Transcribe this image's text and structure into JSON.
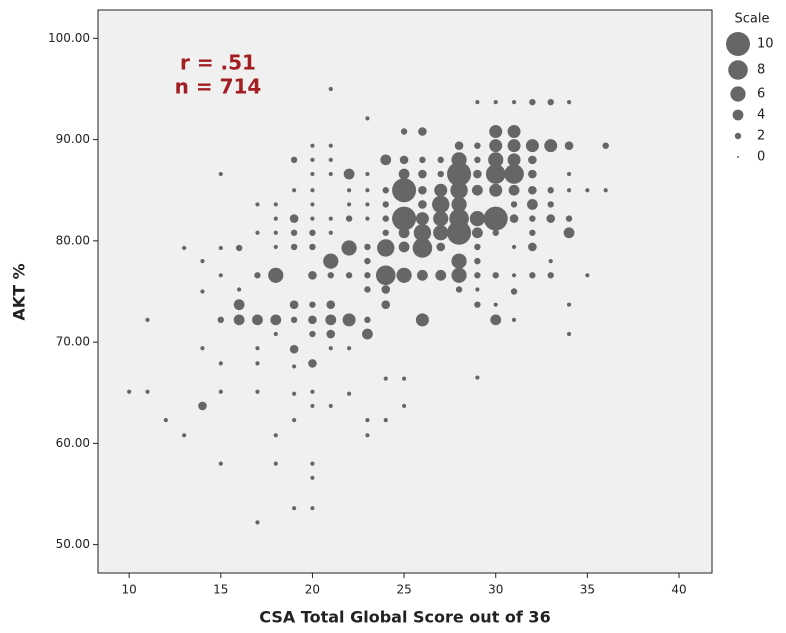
{
  "chart_data": {
    "type": "bubble",
    "xlabel": "CSA Total Global Score out of 36",
    "ylabel": "AKT %",
    "annotations": [
      "r = .51",
      "n = 714"
    ],
    "annotation_color": "#a31e22",
    "color": "#666666",
    "legend_title": "Scale",
    "legend_sizes": [
      10,
      8,
      6,
      4,
      2,
      0
    ],
    "xlim": [
      8.3,
      41.8
    ],
    "xticks": [
      10,
      15,
      20,
      25,
      30,
      35,
      40
    ],
    "ylim": [
      47.2,
      102.8
    ],
    "yticks": [
      {
        "value": 50,
        "label": "50.00"
      },
      {
        "value": 60,
        "label": "60.00"
      },
      {
        "value": 70,
        "label": "70.00"
      },
      {
        "value": 80,
        "label": "80.00"
      },
      {
        "value": 90,
        "label": "90.00"
      },
      {
        "value": 100,
        "label": "100.00"
      }
    ],
    "x": [
      10,
      11,
      11,
      12,
      13,
      13,
      14,
      14,
      14,
      14,
      15,
      15,
      15,
      15,
      15,
      15,
      15,
      16,
      16,
      16,
      16,
      17,
      17,
      17,
      17,
      17,
      17,
      17,
      17,
      18,
      18,
      18,
      18,
      18,
      18,
      18,
      18,
      18,
      19,
      19,
      19,
      19,
      19,
      19,
      19,
      19,
      19,
      19,
      19,
      19,
      20,
      20,
      20,
      20,
      20,
      20,
      20,
      20,
      20,
      20,
      20,
      20,
      20,
      20,
      20,
      20,
      20,
      20,
      21,
      21,
      21,
      21,
      21,
      21,
      21,
      21,
      21,
      21,
      21,
      21,
      21,
      22,
      22,
      22,
      22,
      22,
      22,
      22,
      22,
      22,
      23,
      23,
      23,
      23,
      23,
      23,
      23,
      23,
      23,
      23,
      23,
      23,
      23,
      24,
      24,
      24,
      24,
      24,
      24,
      24,
      24,
      24,
      24,
      24,
      25,
      25,
      25,
      25,
      25,
      25,
      25,
      25,
      25,
      25,
      26,
      26,
      26,
      26,
      26,
      26,
      26,
      26,
      26,
      26,
      27,
      27,
      27,
      27,
      27,
      27,
      27,
      27,
      28,
      28,
      28,
      28,
      28,
      28,
      28,
      28,
      28,
      28,
      29,
      29,
      29,
      29,
      29,
      29,
      29,
      29,
      29,
      29,
      29,
      29,
      29,
      30,
      30,
      30,
      30,
      30,
      30,
      30,
      30,
      30,
      30,
      30,
      31,
      31,
      31,
      31,
      31,
      31,
      31,
      31,
      31,
      31,
      31,
      31,
      32,
      32,
      32,
      32,
      32,
      32,
      32,
      32,
      32,
      32,
      33,
      33,
      33,
      33,
      33,
      33,
      33,
      34,
      34,
      34,
      34,
      34,
      34,
      34,
      34,
      35,
      35,
      36,
      36
    ],
    "values": [
      65.1,
      65.1,
      72.2,
      62.3,
      60.8,
      79.3,
      63.7,
      69.4,
      75.0,
      78.0,
      58.0,
      65.1,
      67.9,
      72.2,
      76.6,
      79.3,
      86.6,
      72.2,
      73.7,
      75.2,
      79.3,
      52.2,
      65.1,
      67.9,
      69.4,
      72.2,
      76.6,
      80.8,
      83.6,
      58.0,
      60.8,
      70.8,
      72.2,
      76.6,
      79.4,
      80.8,
      82.2,
      83.6,
      53.6,
      62.3,
      64.9,
      67.6,
      69.3,
      72.2,
      73.7,
      79.4,
      80.8,
      82.2,
      85.0,
      88.0,
      53.6,
      56.6,
      58.0,
      63.7,
      65.1,
      67.9,
      70.8,
      72.2,
      73.7,
      76.6,
      79.4,
      80.8,
      82.2,
      83.6,
      85.0,
      86.6,
      88.0,
      89.4,
      95.0,
      63.7,
      69.4,
      70.8,
      72.2,
      73.7,
      76.6,
      78.0,
      80.8,
      82.2,
      86.6,
      88.0,
      89.4,
      72.2,
      79.3,
      76.6,
      69.4,
      64.9,
      86.6,
      82.2,
      83.6,
      85.0,
      92.1,
      60.8,
      62.3,
      70.8,
      72.2,
      75.2,
      76.6,
      78.0,
      79.4,
      82.2,
      83.6,
      85.0,
      86.6,
      62.3,
      66.4,
      73.7,
      75.2,
      76.6,
      79.3,
      80.8,
      82.2,
      83.6,
      85.0,
      88.0,
      63.7,
      66.4,
      76.6,
      79.4,
      80.8,
      82.2,
      85.0,
      86.6,
      88.0,
      90.8,
      72.2,
      76.6,
      79.3,
      80.8,
      82.2,
      83.6,
      85.0,
      86.6,
      88.0,
      90.8,
      76.6,
      79.4,
      80.8,
      82.2,
      83.6,
      85.0,
      86.6,
      88.0,
      75.2,
      76.6,
      78.0,
      80.8,
      82.2,
      83.6,
      85.0,
      86.6,
      88.0,
      89.4,
      66.5,
      73.7,
      75.2,
      76.6,
      78.0,
      79.4,
      80.8,
      82.2,
      85.0,
      86.6,
      88.0,
      89.4,
      93.7,
      72.2,
      73.7,
      76.6,
      80.8,
      82.2,
      85.0,
      86.6,
      88.0,
      89.4,
      90.8,
      93.7,
      72.2,
      75.0,
      76.6,
      79.4,
      82.2,
      83.6,
      85.0,
      86.6,
      88.0,
      89.4,
      90.8,
      93.7,
      76.6,
      79.4,
      80.8,
      82.2,
      83.6,
      85.0,
      86.6,
      88.0,
      89.4,
      93.7,
      76.6,
      78.0,
      82.2,
      83.6,
      85.0,
      89.4,
      93.7,
      70.8,
      73.7,
      80.8,
      82.2,
      85.0,
      86.6,
      89.4,
      93.7,
      76.6,
      85.0,
      85.0,
      89.4
    ],
    "sizes": [
      1,
      1,
      1,
      1,
      1,
      1,
      3,
      1,
      1,
      1,
      1,
      1,
      1,
      2,
      1,
      1,
      1,
      4,
      4,
      1,
      2,
      1,
      1,
      1,
      1,
      4,
      2,
      1,
      1,
      1,
      1,
      1,
      4,
      6,
      1,
      1,
      1,
      1,
      1,
      1,
      1,
      1,
      3,
      2,
      3,
      2,
      2,
      3,
      1,
      2,
      1,
      1,
      1,
      1,
      1,
      3,
      2,
      3,
      2,
      3,
      2,
      2,
      1,
      1,
      1,
      1,
      1,
      1,
      1,
      1,
      1,
      3,
      4,
      3,
      2,
      6,
      1,
      1,
      1,
      1,
      1,
      5,
      6,
      2,
      1,
      1,
      4,
      2,
      1,
      1,
      1,
      1,
      1,
      4,
      2,
      2,
      2,
      2,
      2,
      1,
      1,
      1,
      1,
      1,
      1,
      3,
      3,
      8,
      7,
      2,
      2,
      2,
      2,
      4,
      1,
      1,
      6,
      4,
      4,
      10,
      10,
      4,
      3,
      2,
      5,
      4,
      8,
      7,
      5,
      3,
      3,
      3,
      2,
      3,
      4,
      3,
      6,
      6,
      7,
      5,
      2,
      2,
      2,
      6,
      6,
      10,
      8,
      6,
      7,
      10,
      6,
      3,
      1,
      2,
      1,
      2,
      2,
      2,
      4,
      6,
      4,
      3,
      2,
      2,
      1,
      4,
      1,
      2,
      2,
      10,
      5,
      8,
      6,
      5,
      5,
      1,
      1,
      2,
      1,
      1,
      3,
      2,
      4,
      8,
      5,
      5,
      5,
      1,
      2,
      3,
      2,
      2,
      4,
      3,
      3,
      3,
      5,
      2,
      2,
      1,
      3,
      2,
      2,
      5,
      2,
      1,
      1,
      4,
      2,
      1,
      1,
      3,
      1,
      1,
      1,
      1,
      2
    ]
  }
}
